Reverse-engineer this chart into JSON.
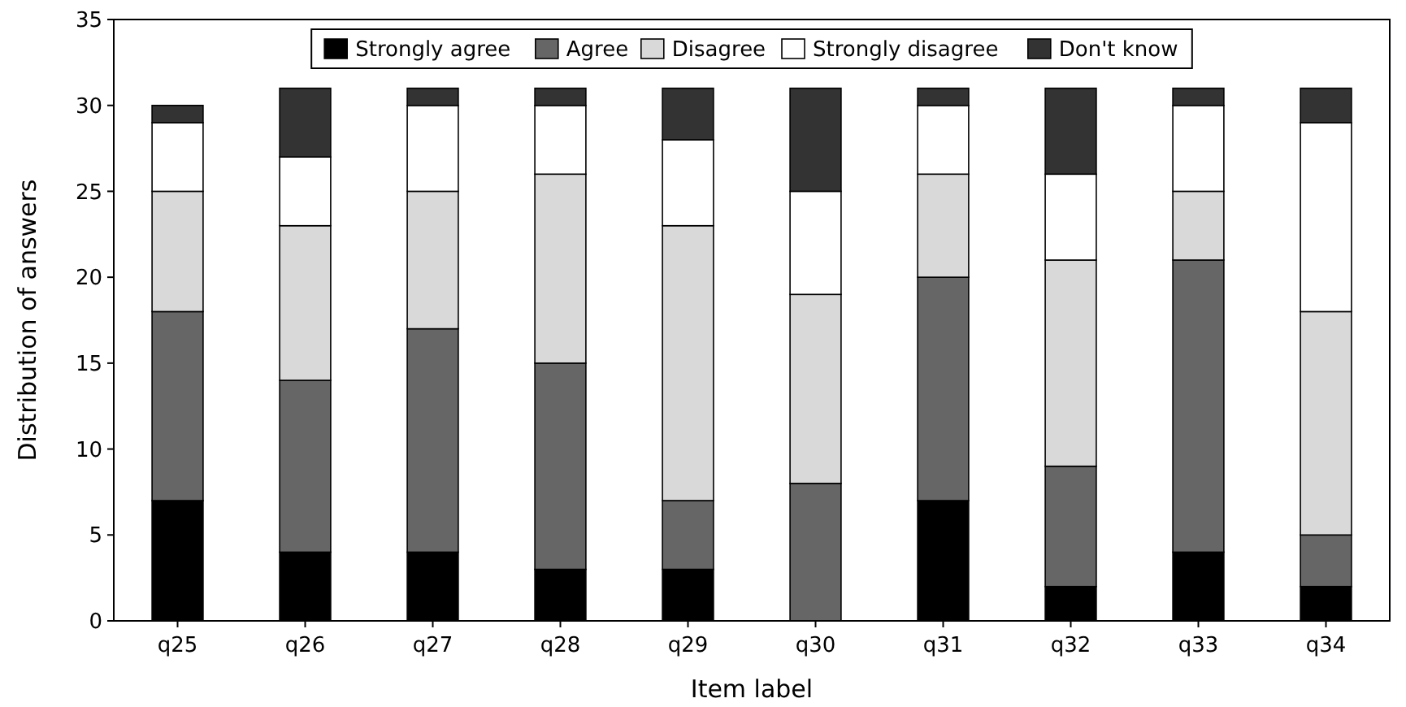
{
  "chart_data": {
    "type": "bar",
    "stacked": true,
    "xlabel": "Item label",
    "ylabel": "Distribution of answers",
    "categories": [
      "q25",
      "q26",
      "q27",
      "q28",
      "q29",
      "q30",
      "q31",
      "q32",
      "q33",
      "q34"
    ],
    "ylim": [
      0,
      35
    ],
    "yticks": [
      0,
      5,
      10,
      15,
      20,
      25,
      30,
      35
    ],
    "legend": "top",
    "grid": false,
    "series": [
      {
        "name": "Strongly agree",
        "color": "#000000",
        "values": [
          7,
          4,
          4,
          3,
          3,
          0,
          7,
          2,
          4,
          2
        ]
      },
      {
        "name": "Agree",
        "color": "#666666",
        "values": [
          11,
          10,
          13,
          12,
          4,
          8,
          13,
          7,
          17,
          3
        ]
      },
      {
        "name": "Disagree",
        "color": "#d9d9d9",
        "values": [
          7,
          9,
          8,
          11,
          16,
          11,
          6,
          12,
          4,
          13
        ]
      },
      {
        "name": "Strongly disagree",
        "color": "#ffffff",
        "values": [
          4,
          4,
          5,
          4,
          5,
          6,
          4,
          5,
          5,
          11
        ]
      },
      {
        "name": "Don't know",
        "color": "#333333",
        "values": [
          1,
          4,
          1,
          1,
          3,
          6,
          1,
          5,
          1,
          2
        ]
      }
    ]
  }
}
